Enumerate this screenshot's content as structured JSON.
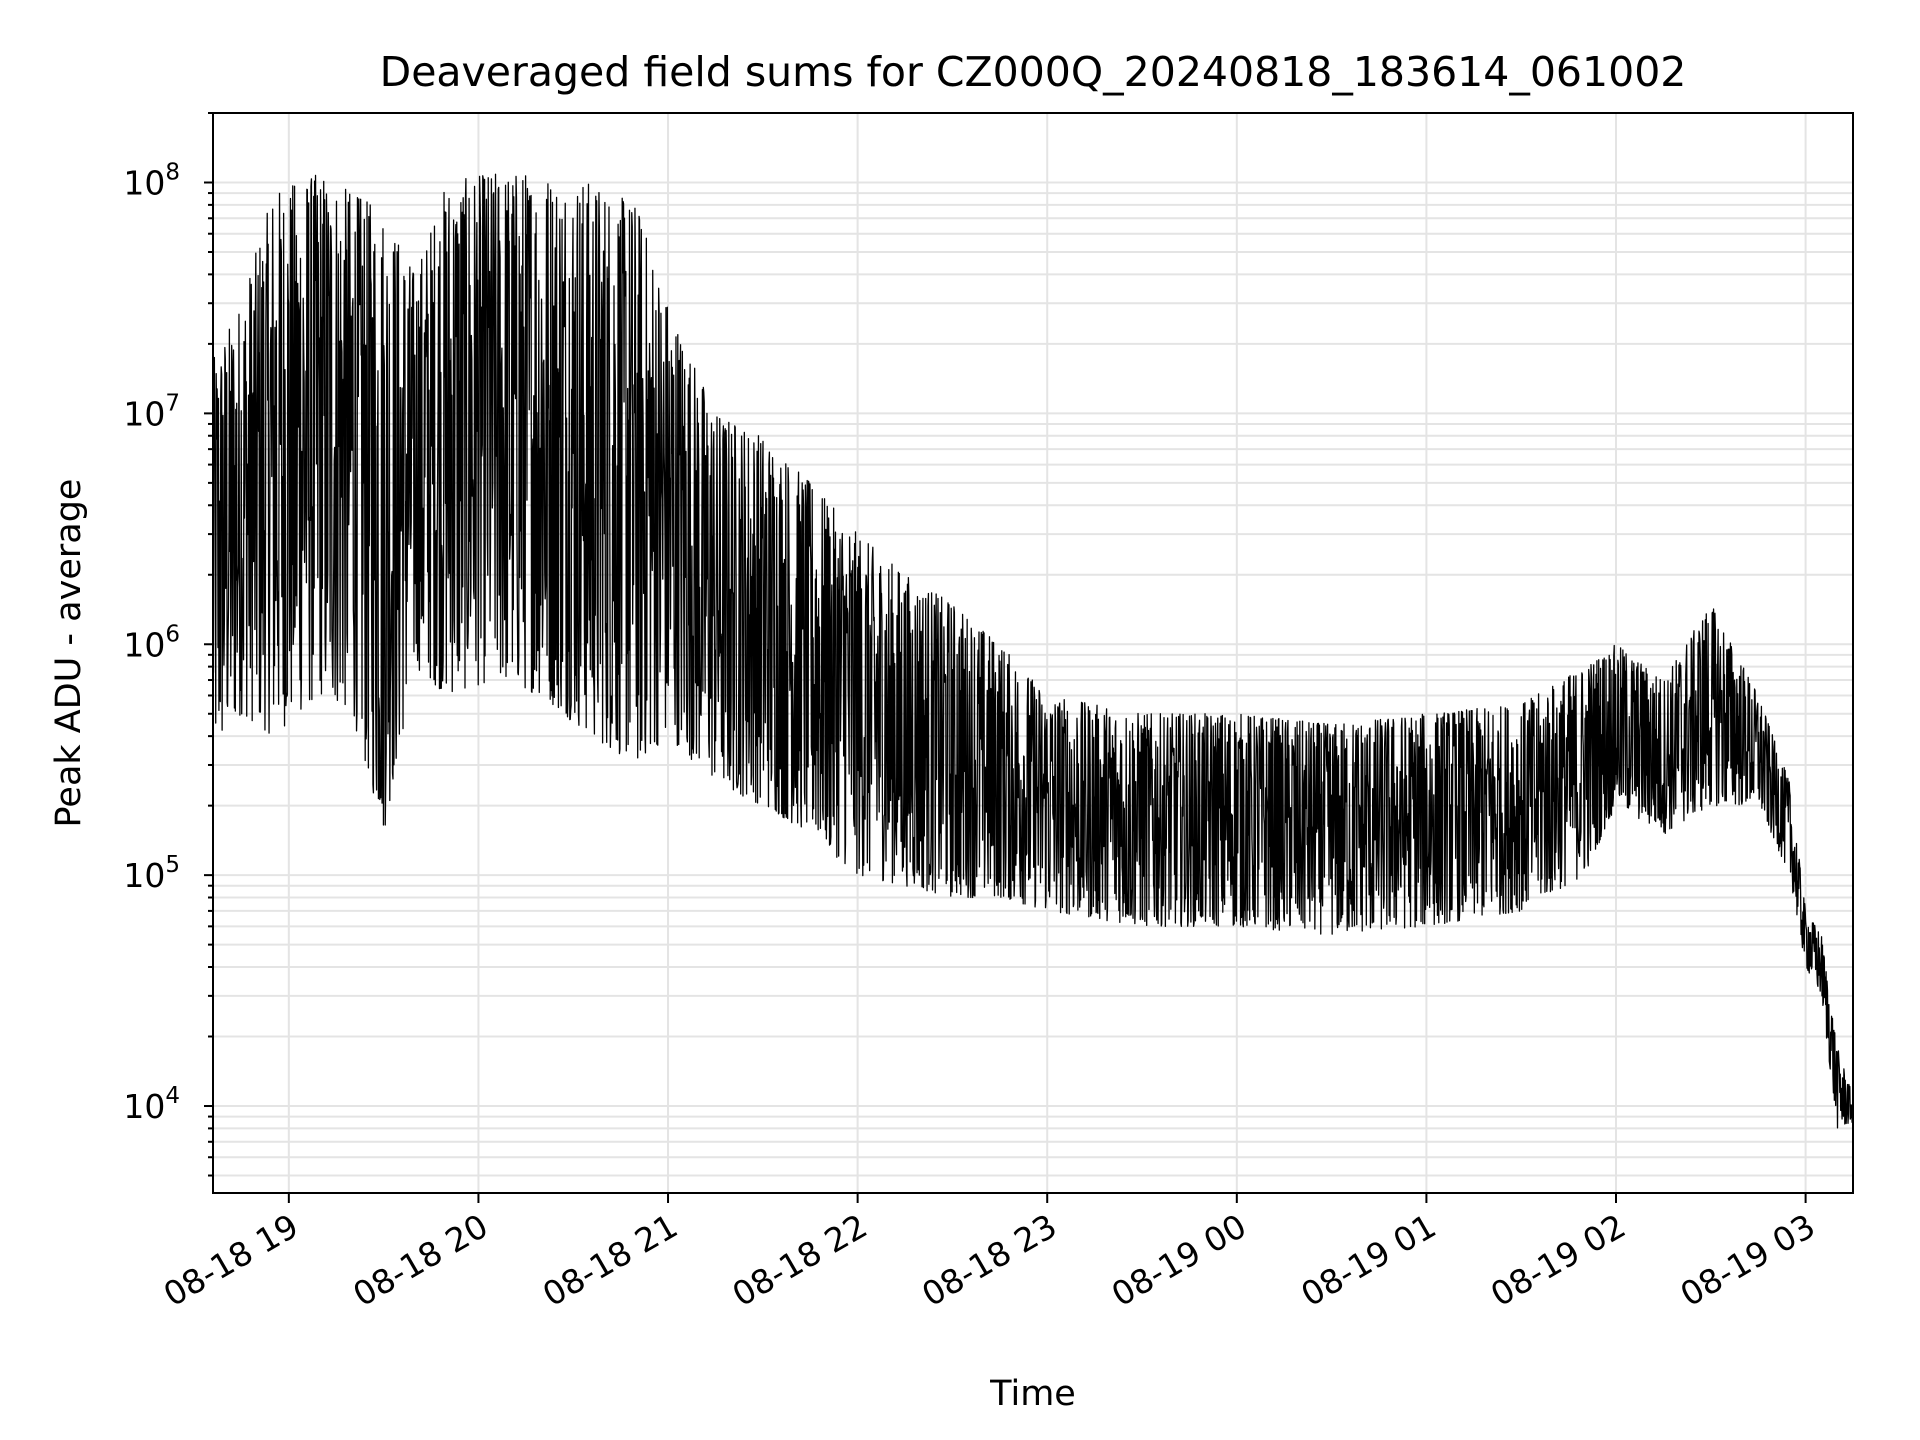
{
  "chart_data": {
    "type": "line",
    "title": "Deaveraged field sums for CZ000Q_20240818_183614_061002",
    "xlabel": "Time",
    "ylabel": "Peak ADU - average",
    "y_scale": "log",
    "ylim": [
      4200,
      200000000
    ],
    "xlim": [
      "2024-08-18 18:36",
      "2024-08-19 03:15"
    ],
    "grid": "major and minor",
    "line_color": "#000000",
    "x_ticks": [
      {
        "t": "2024-08-18 19:00",
        "label": "08-18 19"
      },
      {
        "t": "2024-08-18 20:00",
        "label": "08-18 20"
      },
      {
        "t": "2024-08-18 21:00",
        "label": "08-18 21"
      },
      {
        "t": "2024-08-18 22:00",
        "label": "08-18 22"
      },
      {
        "t": "2024-08-18 23:00",
        "label": "08-18 23"
      },
      {
        "t": "2024-08-19 00:00",
        "label": "08-19 00"
      },
      {
        "t": "2024-08-19 01:00",
        "label": "08-19 01"
      },
      {
        "t": "2024-08-19 02:00",
        "label": "08-19 02"
      },
      {
        "t": "2024-08-19 03:00",
        "label": "08-19 03"
      }
    ],
    "y_ticks": [
      {
        "value": 10000,
        "base": "10",
        "exp": "4"
      },
      {
        "value": 100000,
        "base": "10",
        "exp": "5"
      },
      {
        "value": 1000000,
        "base": "10",
        "exp": "6"
      },
      {
        "value": 10000000,
        "base": "10",
        "exp": "7"
      },
      {
        "value": 100000000,
        "base": "10",
        "exp": "8"
      }
    ],
    "series_envelope": [
      {
        "t": "2024-08-18 18:36",
        "low": 300000,
        "high": 17000000
      },
      {
        "t": "2024-08-18 18:45",
        "low": 500000,
        "high": 30000000
      },
      {
        "t": "2024-08-18 18:55",
        "low": 400000,
        "high": 90000000
      },
      {
        "t": "2024-08-18 19:10",
        "low": 600000,
        "high": 110000000
      },
      {
        "t": "2024-08-18 19:20",
        "low": 500000,
        "high": 90000000
      },
      {
        "t": "2024-08-18 19:30",
        "low": 150000,
        "high": 75000000
      },
      {
        "t": "2024-08-18 19:40",
        "low": 800000,
        "high": 40000000
      },
      {
        "t": "2024-08-18 19:50",
        "low": 600000,
        "high": 100000000
      },
      {
        "t": "2024-08-18 20:05",
        "low": 700000,
        "high": 110000000
      },
      {
        "t": "2024-08-18 20:20",
        "low": 600000,
        "high": 110000000
      },
      {
        "t": "2024-08-18 20:35",
        "low": 400000,
        "high": 100000000
      },
      {
        "t": "2024-08-18 20:50",
        "low": 300000,
        "high": 80000000
      },
      {
        "t": "2024-08-18 21:00",
        "low": 400000,
        "high": 30000000
      },
      {
        "t": "2024-08-18 21:15",
        "low": 250000,
        "high": 10000000
      },
      {
        "t": "2024-08-18 21:30",
        "low": 200000,
        "high": 8000000
      },
      {
        "t": "2024-08-18 21:45",
        "low": 150000,
        "high": 5000000
      },
      {
        "t": "2024-08-18 22:00",
        "low": 100000,
        "high": 3000000
      },
      {
        "t": "2024-08-18 22:15",
        "low": 90000,
        "high": 2000000
      },
      {
        "t": "2024-08-18 22:30",
        "low": 80000,
        "high": 1500000
      },
      {
        "t": "2024-08-18 22:45",
        "low": 80000,
        "high": 1000000
      },
      {
        "t": "2024-08-18 23:00",
        "low": 70000,
        "high": 600000
      },
      {
        "t": "2024-08-18 23:30",
        "low": 60000,
        "high": 500000
      },
      {
        "t": "2024-08-19 00:00",
        "low": 60000,
        "high": 500000
      },
      {
        "t": "2024-08-19 00:30",
        "low": 55000,
        "high": 450000
      },
      {
        "t": "2024-08-19 01:00",
        "low": 60000,
        "high": 500000
      },
      {
        "t": "2024-08-19 01:30",
        "low": 70000,
        "high": 550000
      },
      {
        "t": "2024-08-19 01:50",
        "low": 100000,
        "high": 800000
      },
      {
        "t": "2024-08-19 02:00",
        "low": 200000,
        "high": 1000000
      },
      {
        "t": "2024-08-19 02:15",
        "low": 150000,
        "high": 700000
      },
      {
        "t": "2024-08-19 02:30",
        "low": 200000,
        "high": 1500000
      },
      {
        "t": "2024-08-19 02:45",
        "low": 200000,
        "high": 600000
      },
      {
        "t": "2024-08-19 02:55",
        "low": 100000,
        "high": 250000
      },
      {
        "t": "2024-08-19 03:00",
        "low": 40000,
        "high": 70000
      },
      {
        "t": "2024-08-19 03:05",
        "low": 30000,
        "high": 55000
      },
      {
        "t": "2024-08-19 03:10",
        "low": 8000,
        "high": 18000
      },
      {
        "t": "2024-08-19 03:15",
        "low": 8500,
        "high": 11000
      }
    ]
  }
}
